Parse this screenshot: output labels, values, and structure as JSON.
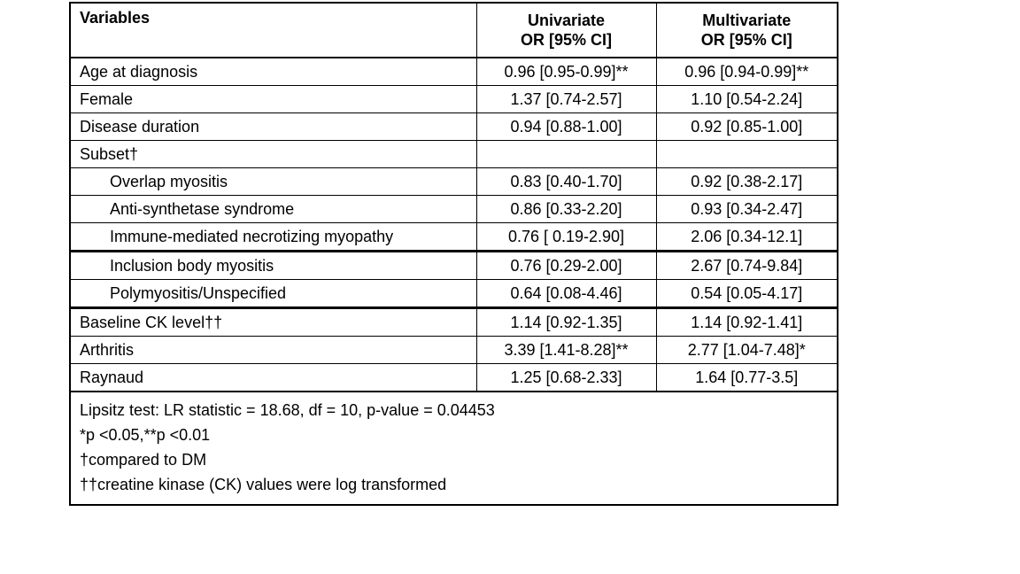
{
  "table": {
    "header": {
      "variables": "Variables",
      "univariate": {
        "line1": "Univariate",
        "line2": "OR [95% CI]"
      },
      "multivariate": {
        "line1": "Multivariate",
        "line2": "OR [95% CI]"
      }
    },
    "rows": [
      {
        "label": "Age at diagnosis",
        "univariate": "0.96 [0.95-0.99]**",
        "multivariate": "0.96 [0.94-0.99]**"
      },
      {
        "label": "Female",
        "univariate": "1.37 [0.74-2.57]",
        "multivariate": "1.10 [0.54-2.24]"
      },
      {
        "label": "Disease duration",
        "univariate": "0.94 [0.88-1.00]",
        "multivariate": "0.92 [0.85-1.00]"
      },
      {
        "label": "Subset†",
        "univariate": "",
        "multivariate": ""
      },
      {
        "label": "Overlap myositis",
        "univariate": "0.83 [0.40-1.70]",
        "multivariate": "0.92 [0.38-2.17]"
      },
      {
        "label": "Anti-synthetase syndrome",
        "univariate": "0.86 [0.33-2.20]",
        "multivariate": "0.93 [0.34-2.47]"
      },
      {
        "label": "Immune-mediated necrotizing myopathy",
        "univariate": "0.76 [ 0.19-2.90]",
        "multivariate": "2.06 [0.34-12.1]"
      },
      {
        "label": "Inclusion body myositis",
        "univariate": "0.76 [0.29-2.00]",
        "multivariate": "2.67 [0.74-9.84]"
      },
      {
        "label": "Polymyositis/Unspecified",
        "univariate": "0.64 [0.08-4.46]",
        "multivariate": "0.54 [0.05-4.17]"
      },
      {
        "label": "Baseline CK level††",
        "univariate": "1.14 [0.92-1.35]",
        "multivariate": "1.14 [0.92-1.41]"
      },
      {
        "label": "Arthritis",
        "univariate": "3.39 [1.41-8.28]**",
        "multivariate": "2.77 [1.04-7.48]*"
      },
      {
        "label": "Raynaud",
        "univariate": "1.25 [0.68-2.33]",
        "multivariate": "1.64 [0.77-3.5]"
      }
    ],
    "footnotes": [
      "Lipsitz test: LR statistic = 18.68, df = 10, p-value = 0.04453",
      "*p <0.05,**p <0.01",
      "†compared to DM",
      "††creatine kinase (CK) values were log transformed"
    ]
  }
}
